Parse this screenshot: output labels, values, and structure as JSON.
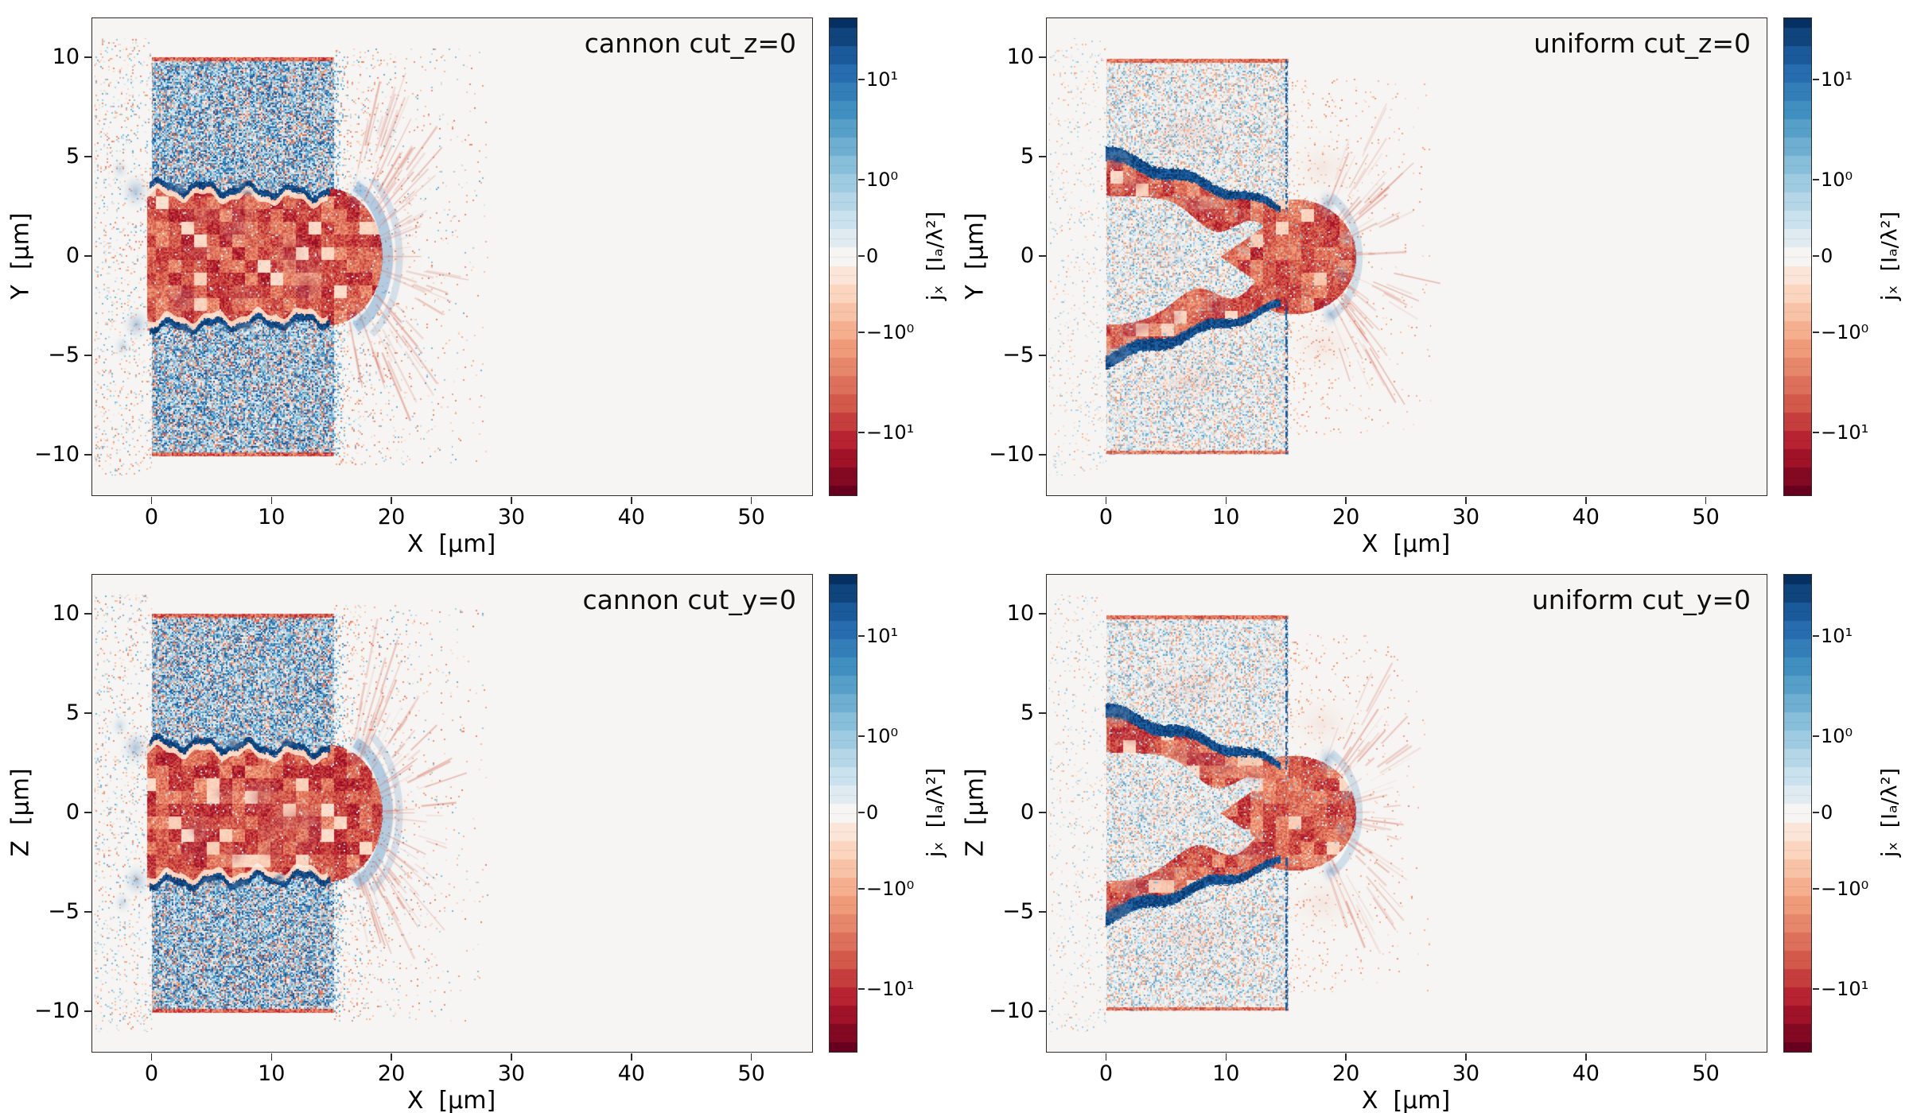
{
  "figure": {
    "background": "#ffffff",
    "spine_color": "#2b2b2b",
    "text_color": "#000000",
    "colormap_name": "RdBu diverging (blue = positive jx, red = negative jx)"
  },
  "chart_data": {
    "type": "heatmap",
    "layout": "2x2 grid of simulation current-density slices",
    "quantity_label": "jₓ  [Iₐ/λ²]",
    "color_scale": "symlog",
    "panels": [
      {
        "title": "cannon cut_z=0",
        "scene": "cannon",
        "seed": 1,
        "xlabel": "X  [μm]",
        "ylabel": "Y  [μm]",
        "xlim": [
          -5,
          55
        ],
        "ylim": [
          -12,
          12
        ],
        "xticks": [
          0,
          10,
          20,
          30,
          40,
          50
        ],
        "yticks": [
          -10,
          -5,
          0,
          5,
          10
        ],
        "colorbar": {
          "label": "jₓ  [Iₐ/λ²]",
          "ticks": [
            {
              "text": "10¹",
              "pos": 0.13
            },
            {
              "text": "10⁰",
              "pos": 0.34
            },
            {
              "text": "0",
              "pos": 0.5
            },
            {
              "text": "−10⁰",
              "pos": 0.66
            },
            {
              "text": "−10¹",
              "pos": 0.87
            }
          ]
        },
        "features": {
          "target_slab_x_um": [
            0,
            15
          ],
          "target_slab_y_um": [
            -10,
            10
          ],
          "channel_x_um": [
            0,
            19
          ],
          "channel_half_width_um": 3.5,
          "description": "pre-drilled cannon channel: strong negative jx (red) core |Y|<3.5 ending in round cap at X≈15–19; dark-blue sheath current lines along channel walls; dense blue/red speckled return current in bulk target; blue front arc at X≈15–20; faint red filament spray into vacuum up to X≈27; red slab edge lines at Y=±10"
        }
      },
      {
        "title": "uniform cut_z=0",
        "scene": "uniform",
        "seed": 2,
        "xlabel": "X  [μm]",
        "ylabel": "Y  [μm]",
        "xlim": [
          -5,
          55
        ],
        "ylim": [
          -12,
          12
        ],
        "xticks": [
          0,
          10,
          20,
          30,
          40,
          50
        ],
        "yticks": [
          -10,
          -5,
          0,
          5,
          10
        ],
        "colorbar": {
          "label": "jₓ  [Iₐ/λ²]",
          "ticks": [
            {
              "text": "10¹",
              "pos": 0.13
            },
            {
              "text": "10⁰",
              "pos": 0.34
            },
            {
              "text": "0",
              "pos": 0.5
            },
            {
              "text": "−10⁰",
              "pos": 0.66
            },
            {
              "text": "−10¹",
              "pos": 0.87
            }
          ]
        },
        "features": {
          "target_slab_x_um": [
            0,
            15
          ],
          "target_slab_y_um": [
            -10,
            10
          ],
          "cone_start_y_um": 5,
          "cone_apex_x_um": 17,
          "description": "uniform target: two red (negative jx) arms from Y≈±5 at X=0 converging and merging near X≈15–20 into a red head; dark-blue sheath current on outer arm edges; sparse pale speckle in bulk target; dashed blue line at target rear X≈15; blue blobs at head; red spray beyond X≈20"
        }
      },
      {
        "title": "cannon cut_y=0",
        "scene": "cannon",
        "seed": 3,
        "xlabel": "X  [μm]",
        "ylabel": "Z  [μm]",
        "xlim": [
          -5,
          55
        ],
        "ylim": [
          -12,
          12
        ],
        "xticks": [
          0,
          10,
          20,
          30,
          40,
          50
        ],
        "yticks": [
          -10,
          -5,
          0,
          5,
          10
        ],
        "colorbar": {
          "label": "jₓ  [Iₐ/λ²]",
          "ticks": [
            {
              "text": "10¹",
              "pos": 0.13
            },
            {
              "text": "10⁰",
              "pos": 0.34
            },
            {
              "text": "0",
              "pos": 0.5
            },
            {
              "text": "−10⁰",
              "pos": 0.66
            },
            {
              "text": "−10¹",
              "pos": 0.87
            }
          ]
        },
        "features": {
          "target_slab_x_um": [
            0,
            15
          ],
          "target_slab_y_um": [
            -10,
            10
          ],
          "channel_x_um": [
            0,
            19
          ],
          "channel_half_width_um": 3.5,
          "description": "same cannon-channel structure as cut_z=0 seen in the X–Z plane"
        }
      },
      {
        "title": "uniform cut_y=0",
        "scene": "uniform",
        "seed": 4,
        "xlabel": "X  [μm]",
        "ylabel": "Z  [μm]",
        "xlim": [
          -5,
          55
        ],
        "ylim": [
          -12,
          12
        ],
        "xticks": [
          0,
          10,
          20,
          30,
          40,
          50
        ],
        "yticks": [
          -10,
          -5,
          0,
          5,
          10
        ],
        "colorbar": {
          "label": "jₓ  [Iₐ/λ²]",
          "ticks": [
            {
              "text": "10¹",
              "pos": 0.13
            },
            {
              "text": "10⁰",
              "pos": 0.34
            },
            {
              "text": "0",
              "pos": 0.5
            },
            {
              "text": "−10⁰",
              "pos": 0.66
            },
            {
              "text": "−10¹",
              "pos": 0.87
            }
          ]
        },
        "features": {
          "target_slab_x_um": [
            0,
            15
          ],
          "target_slab_y_um": [
            -10,
            10
          ],
          "cone_start_y_um": 5,
          "cone_apex_x_um": 17,
          "description": "same converging-cone structure as uniform cut_z=0 seen in the X–Z plane"
        }
      }
    ]
  }
}
